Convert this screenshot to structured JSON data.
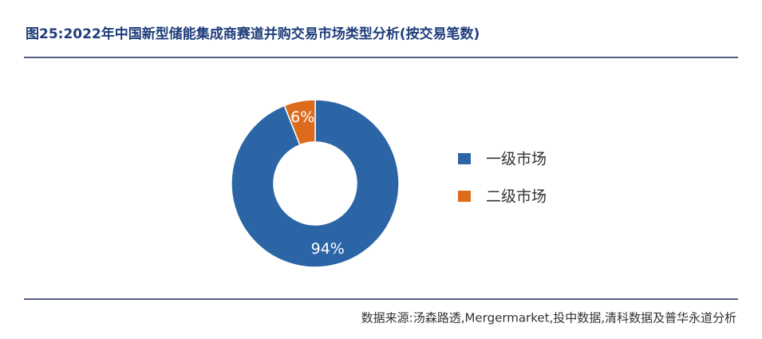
{
  "chart_data": {
    "type": "donut",
    "title": "图25:2022年中国新型储能集成商赛道并购交易市场类型分析(按交易笔数)",
    "categories": [
      "一级市场",
      "二级市场"
    ],
    "values": [
      94,
      6
    ],
    "value_labels": [
      "94%",
      "6%"
    ],
    "colors": [
      "#2b65a5",
      "#dd6b1c"
    ],
    "source": "数据来源:汤森路透,Mergermarket,投中数据,清科数据及普华永道分析"
  }
}
